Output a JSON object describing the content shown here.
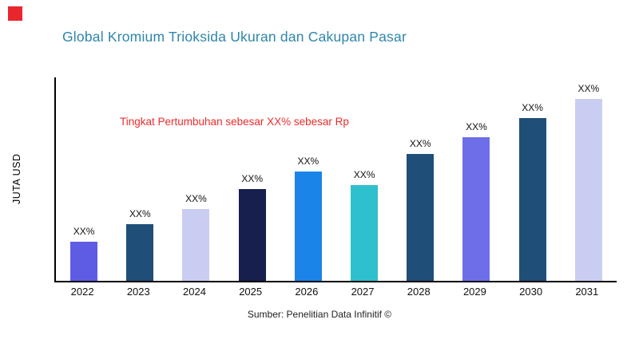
{
  "brand": {
    "logo_color": "#e8262d"
  },
  "header": {
    "title": "Global Kromium Trioksida Ukuran dan Cakupan Pasar"
  },
  "footer": {
    "source": "Sumber: Penelitian Data Infinitif ©"
  },
  "chart_data": {
    "type": "bar",
    "title": "Global Kromium Trioksida Ukuran dan Cakupan Pasar",
    "annotation": "Tingkat Pertumbuhan sebesar XX% sebesar Rp",
    "annotation_color": "#ee2b2b",
    "ylabel": "JUTA USD",
    "xlabel": "",
    "categories": [
      "2022",
      "2023",
      "2024",
      "2025",
      "2026",
      "2027",
      "2028",
      "2029",
      "2030",
      "2031"
    ],
    "values": [
      50,
      72,
      92,
      117,
      140,
      122,
      162,
      184,
      208,
      232
    ],
    "bar_labels": [
      "XX%",
      "XX%",
      "XX%",
      "XX%",
      "XX%",
      "XX%",
      "XX%",
      "XX%",
      "XX%",
      "XX%"
    ],
    "bar_colors": [
      "#5f5ce4",
      "#1f4e79",
      "#c9cdf2",
      "#171f4e",
      "#1b84e8",
      "#2fc0ce",
      "#1f4e79",
      "#6e6fe8",
      "#1f4e79",
      "#c9cdf2"
    ],
    "ylim": [
      0,
      260
    ],
    "grid": false,
    "legend": "none"
  }
}
